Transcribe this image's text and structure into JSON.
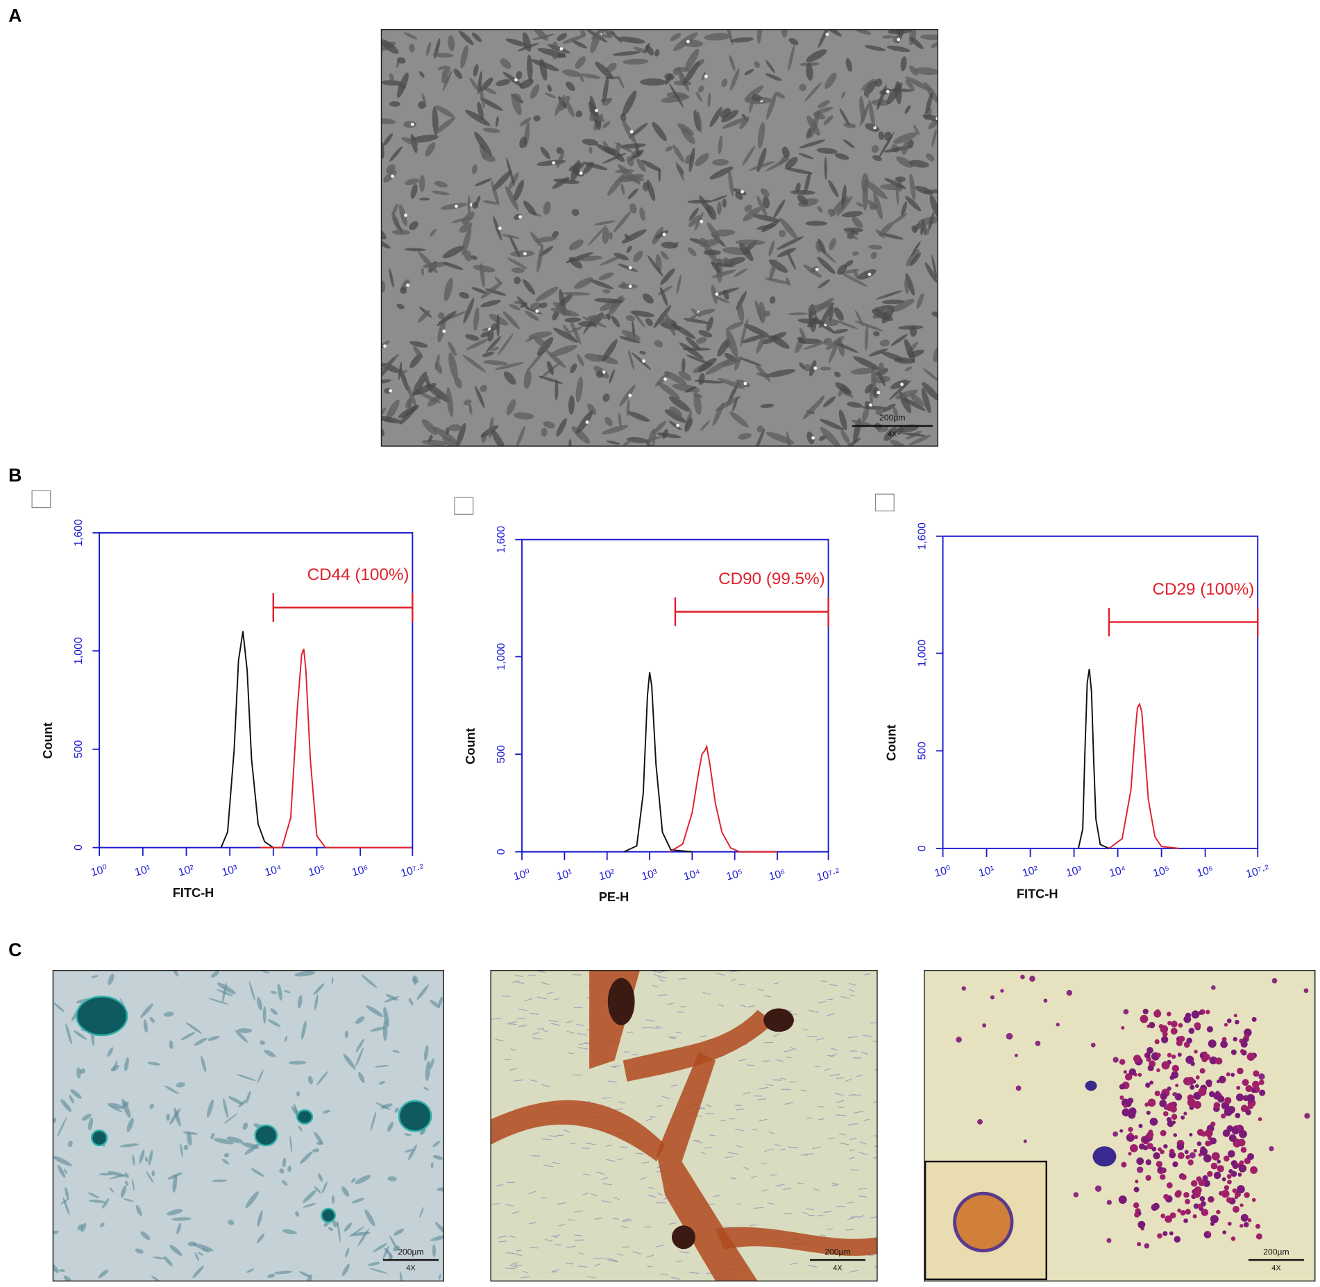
{
  "panels": {
    "a": {
      "label": "A",
      "scale_bar": {
        "length": "200µm",
        "magnification": "4X"
      }
    },
    "b": {
      "label": "B"
    },
    "c": {
      "label": "C",
      "images": [
        {
          "scale_bar": {
            "length": "200µm",
            "magnification": "4X"
          }
        },
        {
          "scale_bar": {
            "length": "200µm",
            "magnification": "4X"
          }
        },
        {
          "scale_bar": {
            "length": "200µm",
            "magnification": "4X"
          }
        }
      ]
    }
  },
  "chart_data": [
    {
      "type": "line",
      "xlabel": "FITC-H",
      "ylabel": "Count",
      "xscale": "log",
      "xlim": [
        1,
        15848932
      ],
      "ylim": [
        0,
        1600
      ],
      "xticks": [
        {
          "value": 1,
          "label": "10⁰"
        },
        {
          "value": 10,
          "label": "10¹"
        },
        {
          "value": 100,
          "label": "10²"
        },
        {
          "value": 1000,
          "label": "10³"
        },
        {
          "value": 10000,
          "label": "10⁴"
        },
        {
          "value": 100000,
          "label": "10⁵"
        },
        {
          "value": 1000000,
          "label": "10⁶"
        },
        {
          "value": 15848932,
          "label": "10⁷·²"
        }
      ],
      "yticks": [
        0,
        500,
        {
          "value": 1000,
          "label": "1,000"
        },
        {
          "value": 1600,
          "label": "1,600"
        }
      ],
      "axis_color": "#1a1ad0",
      "series": [
        {
          "color": "#111111",
          "x": [
            630,
            890,
            1260,
            1580,
            2000,
            2510,
            3160,
            4470,
            6310,
            10000
          ],
          "values": [
            0,
            80,
            500,
            950,
            1100,
            900,
            450,
            120,
            30,
            0
          ]
        },
        {
          "color": "#e0202a",
          "x": [
            5000,
            15850,
            25120,
            35480,
            44670,
            50120,
            56230,
            70790,
            100000,
            158490,
            15000000
          ],
          "values": [
            0,
            0,
            150,
            700,
            980,
            1010,
            900,
            450,
            60,
            0,
            0
          ]
        }
      ],
      "gate": {
        "label": "CD44 (100%)",
        "x": [
          10000,
          15848932
        ],
        "y": 1220,
        "color": "#e0202a"
      }
    },
    {
      "type": "line",
      "xlabel": "PE-H",
      "ylabel": "Count",
      "xscale": "log",
      "xlim": [
        1,
        15848932
      ],
      "ylim": [
        0,
        1600
      ],
      "xticks": [
        {
          "value": 1,
          "label": "10⁰"
        },
        {
          "value": 10,
          "label": "10¹"
        },
        {
          "value": 100,
          "label": "10²"
        },
        {
          "value": 1000,
          "label": "10³"
        },
        {
          "value": 10000,
          "label": "10⁴"
        },
        {
          "value": 100000,
          "label": "10⁵"
        },
        {
          "value": 1000000,
          "label": "10⁶"
        },
        {
          "value": 15848932,
          "label": "10⁷·²"
        }
      ],
      "yticks": [
        0,
        500,
        {
          "value": 1000,
          "label": "1,000"
        },
        {
          "value": 1600,
          "label": "1,600"
        }
      ],
      "axis_color": "#1a1ad0",
      "series": [
        {
          "color": "#111111",
          "x": [
            250,
            500,
            710,
            890,
            1000,
            1120,
            1410,
            2000,
            3160,
            10000
          ],
          "values": [
            0,
            30,
            300,
            800,
            920,
            850,
            450,
            100,
            10,
            0
          ]
        },
        {
          "color": "#e0202a",
          "x": [
            3000,
            6000,
            10000,
            14000,
            17000,
            20000,
            22000,
            26000,
            35000,
            50000,
            80000,
            130000,
            1000000
          ],
          "values": [
            0,
            40,
            200,
            400,
            500,
            520,
            540,
            450,
            250,
            100,
            20,
            0,
            0
          ]
        }
      ],
      "gate": {
        "label": "CD90 (99.5%)",
        "x": [
          4000,
          15848932
        ],
        "y": 1230,
        "color": "#e0202a"
      }
    },
    {
      "type": "line",
      "xlabel": "FITC-H",
      "ylabel": "Count",
      "xscale": "log",
      "xlim": [
        1,
        15848932
      ],
      "ylim": [
        0,
        1600
      ],
      "xticks": [
        {
          "value": 1,
          "label": "10⁰"
        },
        {
          "value": 10,
          "label": "10¹"
        },
        {
          "value": 100,
          "label": "10²"
        },
        {
          "value": 1000,
          "label": "10³"
        },
        {
          "value": 10000,
          "label": "10⁴"
        },
        {
          "value": 100000,
          "label": "10⁵"
        },
        {
          "value": 1000000,
          "label": "10⁶"
        },
        {
          "value": 15848932,
          "label": "10⁷·²"
        }
      ],
      "yticks": [
        0,
        500,
        {
          "value": 1000,
          "label": "1,000"
        },
        {
          "value": 1600,
          "label": "1,600"
        }
      ],
      "axis_color": "#1a1ad0",
      "series": [
        {
          "color": "#111111",
          "x": [
            1260,
            1580,
            1780,
            2000,
            2240,
            2510,
            2820,
            3160,
            3980,
            6310
          ],
          "values": [
            0,
            100,
            500,
            850,
            920,
            800,
            450,
            150,
            20,
            0
          ]
        },
        {
          "color": "#e0202a",
          "x": [
            6310,
            12590,
            19950,
            25120,
            28180,
            31620,
            35480,
            39810,
            50120,
            70790,
            100000,
            250000
          ],
          "values": [
            0,
            50,
            300,
            600,
            720,
            740,
            700,
            550,
            250,
            60,
            10,
            0
          ]
        }
      ],
      "gate": {
        "label": "CD29 (100%)",
        "x": [
          6310,
          15848932
        ],
        "y": 1160,
        "color": "#e0202a"
      }
    }
  ]
}
